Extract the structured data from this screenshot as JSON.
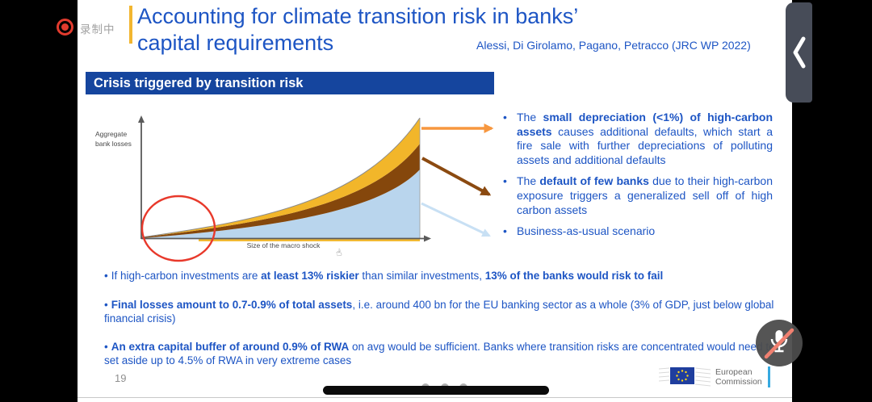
{
  "recording": {
    "label": "录制中"
  },
  "phone": {
    "chevron_icon": "chevron-left",
    "mic_state": "muted"
  },
  "slide": {
    "title_line1": "Accounting for climate transition risk in banks’",
    "title_line2": "capital requirements",
    "attribution": "Alessi, Di Girolamo, Pagano, Petracco (JRC WP 2022)",
    "banner": "Crisis triggered by transition risk",
    "chart": {
      "y_axis_label_line1": "Aggregate",
      "y_axis_label_line2": "bank losses",
      "x_axis_label": "Size of the macro shock"
    },
    "right_bullets": [
      {
        "segments": [
          {
            "t": "The ",
            "b": false
          },
          {
            "t": "small depreciation (<1%) of high-carbon assets",
            "b": true
          },
          {
            "t": " causes additional defaults, which start a fire sale with further depreciations of polluting assets and additional defaults",
            "b": false
          }
        ]
      },
      {
        "segments": [
          {
            "t": "The ",
            "b": false
          },
          {
            "t": "default of few banks",
            "b": true
          },
          {
            "t": " due to their high-carbon exposure triggers a generalized sell off of high carbon assets",
            "b": false
          }
        ]
      },
      {
        "segments": [
          {
            "t": "Business-as-usual scenario",
            "b": false
          }
        ]
      }
    ],
    "bottom_bullets": [
      {
        "segments": [
          {
            "t": "If high-carbon investments are ",
            "b": false
          },
          {
            "t": "at least 13% riskier",
            "b": true
          },
          {
            "t": " than similar investments, ",
            "b": false
          },
          {
            "t": "13% of the banks would risk to fail",
            "b": true
          }
        ]
      },
      {
        "segments": [
          {
            "t": "Final losses amount to 0.7-0.9% of total assets",
            "b": true
          },
          {
            "t": ", i.e. around 400 bn for the EU banking sector as a whole (3% of GDP, just below global financial crisis)",
            "b": false
          }
        ]
      },
      {
        "segments": [
          {
            "t": "An extra capital buffer of around 0.9% of RWA",
            "b": true
          },
          {
            "t": " on avg would be sufficient. Banks where transition risks are concentrated would need to set aside up to 4.5% of RWA in very extreme cases",
            "b": false
          }
        ]
      }
    ],
    "page_number": "19",
    "logo": {
      "line1": "European",
      "line2": "Commission"
    }
  },
  "chart_data": {
    "type": "area",
    "title": "",
    "xlabel": "Size of the macro shock",
    "ylabel": "Aggregate bank losses",
    "axes_numeric": false,
    "description": "Conceptual stacked-area chart: aggregate bank losses grow convexly with the size of the macro shock; three stacked scenarios.",
    "series": [
      {
        "name": "Business-as-usual scenario",
        "color": "#b9d5ed",
        "position": "bottom area"
      },
      {
        "name": "Default of few banks due to high-carbon exposure triggering generalized sell-off",
        "color": "#85470c",
        "position": "middle band"
      },
      {
        "name": "Additional fire-sale losses from small depreciation (<1%) of high-carbon assets",
        "color": "#f2b62a",
        "position": "top band"
      }
    ],
    "annotations": [
      "red ellipse highlighting the small-shock region near the origin",
      "orange arrow from top band to first bullet",
      "brown arrow from middle band to second bullet",
      "light-blue arrow from bottom area to third bullet"
    ],
    "legend_position": "right-side bullet list"
  },
  "colors": {
    "title_blue": "#1d55c4",
    "banner_bg": "#15459e",
    "accent_bar": "#f2b630",
    "area_yellow": "#f2b62a",
    "area_brown": "#85470c",
    "area_blue": "#b9d5ed",
    "arrow_orange": "#f7973f",
    "arrow_brown": "#8b4a10",
    "arrow_lightblue": "#c8e0f4",
    "annotation_red": "#e8392b",
    "rec_red": "#e23b2e",
    "tab_gray": "#474c58",
    "mic_slash": "#f08070",
    "ec_flag_blue": "#1f3e9e",
    "ec_star_yellow": "#ffd617",
    "ec_bar_blue": "#36a9e0"
  }
}
